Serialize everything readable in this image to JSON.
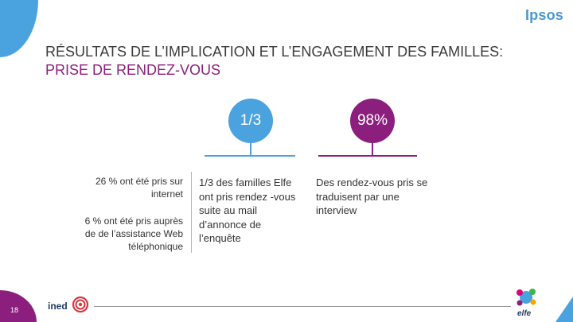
{
  "brand": "Ipsos",
  "title": {
    "main": "RÉSULTATS DE L’IMPLICATION ET L’ENGAGEMENT DES FAMILLES: ",
    "accent": "PRISE DE RENDEZ-VOUS"
  },
  "stats": [
    {
      "value": "1/3",
      "description": "1/3 des familles Elfe ont pris rendez -vous suite au mail d’annonce de l’enquête"
    },
    {
      "value": "98%",
      "description": "Des rendez-vous pris se traduisent par une interview"
    }
  ],
  "breakdown": [
    "26 % ont été pris sur internet",
    "6 % ont été pris auprès de de l’assistance Web téléphonique"
  ],
  "page_number": "18",
  "footer": {
    "left_logo": "ined",
    "right_logo": "elfe"
  },
  "colors": {
    "blue": "#4aa3de",
    "purple": "#8c1f7e",
    "navy": "#1f3a64"
  }
}
